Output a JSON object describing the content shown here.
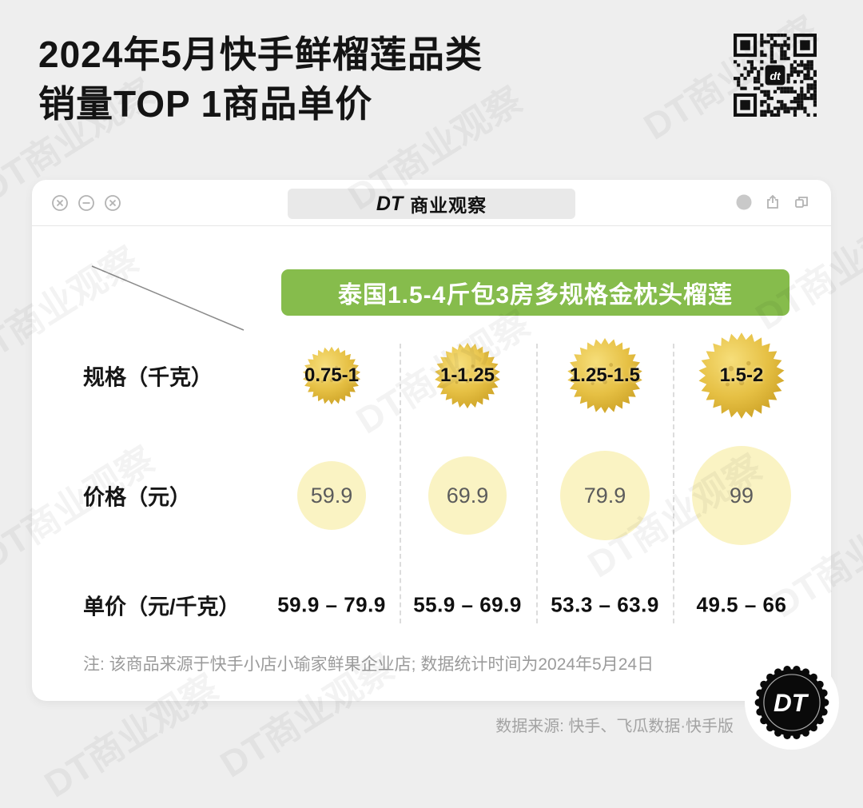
{
  "page": {
    "title_line1": "2024年5月快手鲜榴莲品类",
    "title_line2": "销量TOP 1商品单价",
    "watermark": "DT商业观察",
    "note": "注: 该商品来源于快手小店小瑜家鲜果企业店; 数据统计时间为2024年5月24日",
    "source": "数据来源: 快手、飞瓜数据·快手版"
  },
  "window": {
    "brand_dt": "DT",
    "brand_name": "商业观察"
  },
  "banner": {
    "label": "泰国1.5-4斤包3房多规格金枕头榴莲",
    "color": "#86BC4C"
  },
  "rows": {
    "spec_label": "规格（千克）",
    "price_label": "价格（元）",
    "unit_label": "单价（元/千克）"
  },
  "chart_data": {
    "type": "table",
    "title": "2024年5月快手鲜榴莲品类销量TOP 1商品单价",
    "product": "泰国1.5-4斤包3房多规格金枕头榴莲",
    "row_labels": [
      "规格（千克）",
      "价格（元）",
      "单价（元/千克）"
    ],
    "columns": [
      {
        "spec_kg": "0.75-1",
        "price_yuan": "59.9",
        "unit_price_yuan_per_kg": "59.9 – 79.9"
      },
      {
        "spec_kg": "1-1.25",
        "price_yuan": "69.9",
        "unit_price_yuan_per_kg": "55.9 – 69.9"
      },
      {
        "spec_kg": "1.25-1.5",
        "price_yuan": "79.9",
        "unit_price_yuan_per_kg": "53.3 – 63.9"
      },
      {
        "spec_kg": "1.5-2",
        "price_yuan": "99",
        "unit_price_yuan_per_kg": "49.5 – 66"
      }
    ],
    "colors": {
      "banner_green": "#86BC4C",
      "price_circle_yellow": "#FAF3C3",
      "durian_gold": "#E0B93A"
    }
  },
  "logo": {
    "text": "DT",
    "qr_center": "dt"
  }
}
